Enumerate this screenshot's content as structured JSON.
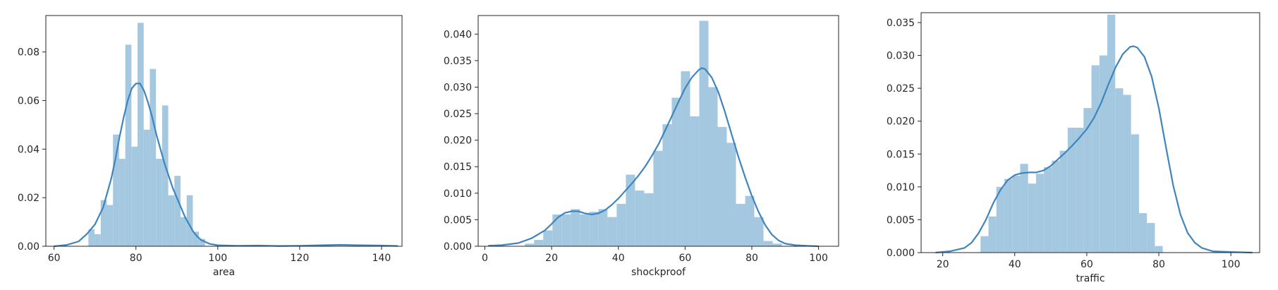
{
  "chart_data": [
    {
      "type": "bar",
      "title": "",
      "xlabel": "area",
      "ylabel": "",
      "xlim": [
        58,
        145
      ],
      "ylim": [
        0,
        0.095
      ],
      "xticks": [
        60,
        80,
        100,
        120,
        140
      ],
      "yticks": [
        0.0,
        0.02,
        0.04,
        0.06,
        0.08
      ],
      "ytick_decimals": 2,
      "bar_color": "#a5c8e1",
      "kde_color": "#3f85bd",
      "grid": false,
      "bins": [
        {
          "x0": 68.4,
          "x1": 69.9,
          "value": 0.007
        },
        {
          "x0": 69.9,
          "x1": 71.4,
          "value": 0.005
        },
        {
          "x0": 71.4,
          "x1": 72.9,
          "value": 0.019
        },
        {
          "x0": 72.9,
          "x1": 74.4,
          "value": 0.017
        },
        {
          "x0": 74.4,
          "x1": 75.9,
          "value": 0.046
        },
        {
          "x0": 75.9,
          "x1": 77.4,
          "value": 0.036
        },
        {
          "x0": 77.4,
          "x1": 78.9,
          "value": 0.083
        },
        {
          "x0": 78.9,
          "x1": 80.4,
          "value": 0.041
        },
        {
          "x0": 80.4,
          "x1": 81.9,
          "value": 0.092
        },
        {
          "x0": 81.9,
          "x1": 83.4,
          "value": 0.048
        },
        {
          "x0": 83.4,
          "x1": 84.9,
          "value": 0.073
        },
        {
          "x0": 84.9,
          "x1": 86.4,
          "value": 0.036
        },
        {
          "x0": 86.4,
          "x1": 87.9,
          "value": 0.058
        },
        {
          "x0": 87.9,
          "x1": 89.4,
          "value": 0.021
        },
        {
          "x0": 89.4,
          "x1": 90.9,
          "value": 0.029
        },
        {
          "x0": 90.9,
          "x1": 92.4,
          "value": 0.012
        },
        {
          "x0": 92.4,
          "x1": 93.9,
          "value": 0.021
        },
        {
          "x0": 93.9,
          "x1": 95.4,
          "value": 0.006
        },
        {
          "x0": 95.4,
          "x1": 96.9,
          "value": 0.003
        }
      ],
      "kde": {
        "x": [
          60,
          63,
          66,
          68,
          70,
          72,
          74,
          75,
          76,
          77,
          78,
          79,
          80,
          81,
          82,
          83,
          84,
          85,
          86,
          87,
          88,
          89,
          90,
          91,
          92,
          93,
          94,
          95,
          96,
          98,
          100,
          105,
          110,
          115,
          120,
          125,
          130,
          135,
          140,
          144
        ],
        "y": [
          0.0,
          0.0005,
          0.002,
          0.005,
          0.009,
          0.016,
          0.028,
          0.036,
          0.045,
          0.053,
          0.06,
          0.065,
          0.067,
          0.067,
          0.064,
          0.059,
          0.053,
          0.046,
          0.04,
          0.034,
          0.029,
          0.024,
          0.02,
          0.016,
          0.012,
          0.009,
          0.006,
          0.004,
          0.0025,
          0.001,
          0.0004,
          0.0002,
          0.0003,
          0.0001,
          0.0002,
          0.0004,
          0.0006,
          0.0004,
          0.0003,
          0.0001
        ]
      }
    },
    {
      "type": "bar",
      "title": "",
      "xlabel": "shockproof",
      "ylabel": "",
      "xlim": [
        -2,
        106
      ],
      "ylim": [
        0,
        0.0435
      ],
      "xticks": [
        0,
        20,
        40,
        60,
        80,
        100
      ],
      "yticks": [
        0.0,
        0.005,
        0.01,
        0.015,
        0.02,
        0.025,
        0.03,
        0.035,
        0.04
      ],
      "ytick_decimals": 3,
      "bar_color": "#a5c8e1",
      "kde_color": "#3f85bd",
      "grid": false,
      "bins": [
        {
          "x0": 12.0,
          "x1": 14.75,
          "value": 0.0005
        },
        {
          "x0": 14.75,
          "x1": 17.5,
          "value": 0.0012
        },
        {
          "x0": 17.5,
          "x1": 20.25,
          "value": 0.003
        },
        {
          "x0": 20.25,
          "x1": 23.0,
          "value": 0.006
        },
        {
          "x0": 23.0,
          "x1": 25.75,
          "value": 0.006
        },
        {
          "x0": 25.75,
          "x1": 28.5,
          "value": 0.007
        },
        {
          "x0": 28.5,
          "x1": 31.25,
          "value": 0.006
        },
        {
          "x0": 31.25,
          "x1": 34.0,
          "value": 0.0065
        },
        {
          "x0": 34.0,
          "x1": 36.75,
          "value": 0.007
        },
        {
          "x0": 36.75,
          "x1": 39.5,
          "value": 0.0055
        },
        {
          "x0": 39.5,
          "x1": 42.25,
          "value": 0.008
        },
        {
          "x0": 42.25,
          "x1": 45.0,
          "value": 0.0135
        },
        {
          "x0": 45.0,
          "x1": 47.75,
          "value": 0.0105
        },
        {
          "x0": 47.75,
          "x1": 50.5,
          "value": 0.01
        },
        {
          "x0": 50.5,
          "x1": 53.25,
          "value": 0.018
        },
        {
          "x0": 53.25,
          "x1": 56.0,
          "value": 0.023
        },
        {
          "x0": 56.0,
          "x1": 58.75,
          "value": 0.028
        },
        {
          "x0": 58.75,
          "x1": 61.5,
          "value": 0.033
        },
        {
          "x0": 61.5,
          "x1": 64.25,
          "value": 0.0245
        },
        {
          "x0": 64.25,
          "x1": 67.0,
          "value": 0.0425
        },
        {
          "x0": 67.0,
          "x1": 69.75,
          "value": 0.03
        },
        {
          "x0": 69.75,
          "x1": 72.5,
          "value": 0.0225
        },
        {
          "x0": 72.5,
          "x1": 75.25,
          "value": 0.0195
        },
        {
          "x0": 75.25,
          "x1": 78.0,
          "value": 0.008
        },
        {
          "x0": 78.0,
          "x1": 80.75,
          "value": 0.0095
        },
        {
          "x0": 80.75,
          "x1": 83.5,
          "value": 0.0055
        },
        {
          "x0": 83.5,
          "x1": 86.25,
          "value": 0.001
        },
        {
          "x0": 86.25,
          "x1": 89.0,
          "value": 0.0005
        }
      ],
      "kde": {
        "x": [
          1,
          5,
          10,
          14,
          18,
          20,
          22,
          24,
          26,
          28,
          30,
          32,
          34,
          36,
          38,
          40,
          42,
          44,
          46,
          48,
          50,
          52,
          54,
          56,
          58,
          60,
          62,
          64,
          65,
          66,
          68,
          70,
          72,
          74,
          76,
          78,
          80,
          82,
          84,
          86,
          88,
          90,
          93,
          96,
          100
        ],
        "y": [
          0.0001,
          0.0002,
          0.0006,
          0.0015,
          0.003,
          0.0042,
          0.0055,
          0.0063,
          0.0066,
          0.0066,
          0.0062,
          0.006,
          0.0062,
          0.0068,
          0.0078,
          0.009,
          0.0104,
          0.0118,
          0.0133,
          0.015,
          0.017,
          0.0192,
          0.0218,
          0.0245,
          0.0272,
          0.0298,
          0.0318,
          0.0332,
          0.0336,
          0.0334,
          0.0318,
          0.029,
          0.0252,
          0.021,
          0.0168,
          0.013,
          0.0095,
          0.0065,
          0.004,
          0.0022,
          0.0011,
          0.0005,
          0.0002,
          0.0001,
          0.0
        ]
      }
    },
    {
      "type": "bar",
      "title": "",
      "xlabel": "traffic",
      "ylabel": "",
      "xlim": [
        14,
        108
      ],
      "ylim": [
        0,
        0.0365
      ],
      "xticks": [
        20,
        40,
        60,
        80,
        100
      ],
      "yticks": [
        0.0,
        0.005,
        0.01,
        0.015,
        0.02,
        0.025,
        0.03,
        0.035
      ],
      "ytick_decimals": 3,
      "bar_color": "#a5c8e1",
      "kde_color": "#3f85bd",
      "grid": false,
      "bins": [
        {
          "x0": 30.5,
          "x1": 32.7,
          "value": 0.0025
        },
        {
          "x0": 32.7,
          "x1": 34.9,
          "value": 0.0055
        },
        {
          "x0": 34.9,
          "x1": 37.1,
          "value": 0.01
        },
        {
          "x0": 37.1,
          "x1": 39.3,
          "value": 0.0112
        },
        {
          "x0": 39.3,
          "x1": 41.5,
          "value": 0.0117
        },
        {
          "x0": 41.5,
          "x1": 43.7,
          "value": 0.0135
        },
        {
          "x0": 43.7,
          "x1": 45.9,
          "value": 0.0105
        },
        {
          "x0": 45.9,
          "x1": 48.1,
          "value": 0.012
        },
        {
          "x0": 48.1,
          "x1": 50.3,
          "value": 0.013
        },
        {
          "x0": 50.3,
          "x1": 52.5,
          "value": 0.014
        },
        {
          "x0": 52.5,
          "x1": 54.7,
          "value": 0.0155
        },
        {
          "x0": 54.7,
          "x1": 56.9,
          "value": 0.019
        },
        {
          "x0": 56.9,
          "x1": 59.1,
          "value": 0.019
        },
        {
          "x0": 59.1,
          "x1": 61.3,
          "value": 0.022
        },
        {
          "x0": 61.3,
          "x1": 63.5,
          "value": 0.0285
        },
        {
          "x0": 63.5,
          "x1": 65.7,
          "value": 0.03
        },
        {
          "x0": 65.7,
          "x1": 67.9,
          "value": 0.0362
        },
        {
          "x0": 67.9,
          "x1": 70.1,
          "value": 0.025
        },
        {
          "x0": 70.1,
          "x1": 72.3,
          "value": 0.024
        },
        {
          "x0": 72.3,
          "x1": 74.5,
          "value": 0.018
        },
        {
          "x0": 74.5,
          "x1": 76.7,
          "value": 0.006
        },
        {
          "x0": 76.7,
          "x1": 78.9,
          "value": 0.0045
        },
        {
          "x0": 78.9,
          "x1": 81.1,
          "value": 0.001
        }
      ],
      "kde": {
        "x": [
          18,
          22,
          26,
          28,
          30,
          32,
          34,
          36,
          38,
          40,
          42,
          44,
          46,
          48,
          50,
          52,
          54,
          56,
          58,
          60,
          62,
          64,
          66,
          68,
          70,
          72,
          73,
          74,
          76,
          78,
          80,
          82,
          84,
          86,
          88,
          90,
          92,
          95,
          100,
          106
        ],
        "y": [
          0.0,
          0.0002,
          0.0007,
          0.0015,
          0.003,
          0.005,
          0.0075,
          0.0095,
          0.011,
          0.0118,
          0.0121,
          0.0122,
          0.0122,
          0.0125,
          0.0132,
          0.0142,
          0.0152,
          0.0163,
          0.0175,
          0.0188,
          0.0205,
          0.0228,
          0.0256,
          0.0282,
          0.0302,
          0.0313,
          0.0314,
          0.0312,
          0.0298,
          0.0268,
          0.022,
          0.016,
          0.0102,
          0.0058,
          0.003,
          0.0015,
          0.0007,
          0.0002,
          0.0001,
          0.0
        ]
      }
    }
  ]
}
